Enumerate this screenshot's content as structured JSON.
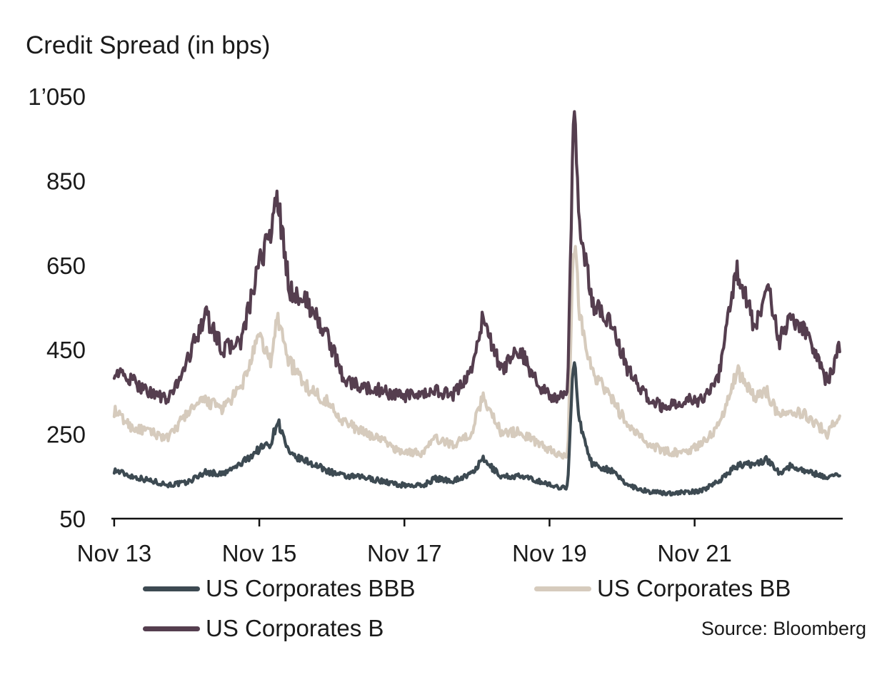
{
  "chart_data": {
    "type": "line",
    "ylabel": "Credit Spread (in bps)",
    "ylim": [
      50,
      1050
    ],
    "yticks": [
      50,
      250,
      450,
      650,
      850,
      1050
    ],
    "ytick_labels": [
      "50",
      "250",
      "450",
      "650",
      "850",
      "1’050"
    ],
    "xlim": [
      "2013-11-01",
      "2023-11-30"
    ],
    "xticks": [
      "2013-11",
      "2015-11",
      "2017-11",
      "2019-11",
      "2021-11"
    ],
    "xtick_labels": [
      "Nov 13",
      "Nov 15",
      "Nov 17",
      "Nov 19",
      "Nov 21"
    ],
    "grid": false,
    "legend_position": "bottom",
    "source": "Source: Bloomberg",
    "series": [
      {
        "name": "US Corporates BBB",
        "color": "#3d4a52",
        "points": [
          [
            "2013-11",
            165
          ],
          [
            "2014-02",
            150
          ],
          [
            "2014-05",
            140
          ],
          [
            "2014-08",
            130
          ],
          [
            "2014-11",
            135
          ],
          [
            "2015-02",
            160
          ],
          [
            "2015-05",
            155
          ],
          [
            "2015-08",
            180
          ],
          [
            "2015-11",
            215
          ],
          [
            "2016-01",
            230
          ],
          [
            "2016-02",
            285
          ],
          [
            "2016-04",
            200
          ],
          [
            "2016-07",
            185
          ],
          [
            "2016-10",
            165
          ],
          [
            "2017-01",
            150
          ],
          [
            "2017-04",
            148
          ],
          [
            "2017-07",
            140
          ],
          [
            "2017-10",
            130
          ],
          [
            "2018-02",
            128
          ],
          [
            "2018-04",
            145
          ],
          [
            "2018-07",
            140
          ],
          [
            "2018-10",
            155
          ],
          [
            "2018-12",
            190
          ],
          [
            "2019-03",
            150
          ],
          [
            "2019-06",
            150
          ],
          [
            "2019-09",
            140
          ],
          [
            "2019-12",
            125
          ],
          [
            "2020-02",
            125
          ],
          [
            "2020-03",
            440
          ],
          [
            "2020-04",
            275
          ],
          [
            "2020-06",
            180
          ],
          [
            "2020-09",
            165
          ],
          [
            "2020-12",
            130
          ],
          [
            "2021-03",
            115
          ],
          [
            "2021-06",
            110
          ],
          [
            "2021-09",
            112
          ],
          [
            "2021-12",
            115
          ],
          [
            "2022-03",
            140
          ],
          [
            "2022-06",
            175
          ],
          [
            "2022-09",
            180
          ],
          [
            "2022-11",
            190
          ],
          [
            "2023-01",
            160
          ],
          [
            "2023-03",
            175
          ],
          [
            "2023-06",
            160
          ],
          [
            "2023-09",
            148
          ],
          [
            "2023-11",
            155
          ]
        ]
      },
      {
        "name": "US Corporates BB",
        "color": "#d6cbbd",
        "points": [
          [
            "2013-11",
            305
          ],
          [
            "2014-02",
            265
          ],
          [
            "2014-05",
            255
          ],
          [
            "2014-08",
            240
          ],
          [
            "2014-11",
            300
          ],
          [
            "2015-02",
            330
          ],
          [
            "2015-05",
            310
          ],
          [
            "2015-08",
            360
          ],
          [
            "2015-11",
            480
          ],
          [
            "2016-01",
            420
          ],
          [
            "2016-02",
            530
          ],
          [
            "2016-04",
            420
          ],
          [
            "2016-07",
            360
          ],
          [
            "2016-10",
            330
          ],
          [
            "2017-01",
            280
          ],
          [
            "2017-04",
            255
          ],
          [
            "2017-07",
            240
          ],
          [
            "2017-10",
            210
          ],
          [
            "2018-02",
            205
          ],
          [
            "2018-04",
            240
          ],
          [
            "2018-07",
            225
          ],
          [
            "2018-10",
            250
          ],
          [
            "2018-12",
            340
          ],
          [
            "2019-03",
            255
          ],
          [
            "2019-06",
            255
          ],
          [
            "2019-09",
            230
          ],
          [
            "2019-12",
            205
          ],
          [
            "2020-02",
            200
          ],
          [
            "2020-03",
            720
          ],
          [
            "2020-04",
            540
          ],
          [
            "2020-06",
            400
          ],
          [
            "2020-09",
            340
          ],
          [
            "2020-12",
            270
          ],
          [
            "2021-03",
            230
          ],
          [
            "2021-06",
            210
          ],
          [
            "2021-09",
            205
          ],
          [
            "2021-12",
            225
          ],
          [
            "2022-03",
            270
          ],
          [
            "2022-06",
            400
          ],
          [
            "2022-09",
            340
          ],
          [
            "2022-11",
            350
          ],
          [
            "2023-01",
            290
          ],
          [
            "2023-03",
            310
          ],
          [
            "2023-06",
            290
          ],
          [
            "2023-09",
            250
          ],
          [
            "2023-11",
            300
          ]
        ]
      },
      {
        "name": "US Corporates B",
        "color": "#553e4f",
        "points": [
          [
            "2013-11",
            400
          ],
          [
            "2014-02",
            375
          ],
          [
            "2014-05",
            350
          ],
          [
            "2014-08",
            330
          ],
          [
            "2014-11",
            420
          ],
          [
            "2015-02",
            535
          ],
          [
            "2015-05",
            450
          ],
          [
            "2015-08",
            470
          ],
          [
            "2015-11",
            650
          ],
          [
            "2016-01",
            740
          ],
          [
            "2016-02",
            810
          ],
          [
            "2016-04",
            590
          ],
          [
            "2016-07",
            560
          ],
          [
            "2016-10",
            490
          ],
          [
            "2017-01",
            380
          ],
          [
            "2017-04",
            360
          ],
          [
            "2017-07",
            355
          ],
          [
            "2017-10",
            340
          ],
          [
            "2018-02",
            340
          ],
          [
            "2018-04",
            355
          ],
          [
            "2018-07",
            340
          ],
          [
            "2018-10",
            400
          ],
          [
            "2018-12",
            525
          ],
          [
            "2019-03",
            400
          ],
          [
            "2019-06",
            450
          ],
          [
            "2019-09",
            370
          ],
          [
            "2019-12",
            330
          ],
          [
            "2020-02",
            350
          ],
          [
            "2020-03",
            1020
          ],
          [
            "2020-04",
            750
          ],
          [
            "2020-06",
            560
          ],
          [
            "2020-09",
            520
          ],
          [
            "2020-12",
            400
          ],
          [
            "2021-03",
            340
          ],
          [
            "2021-06",
            310
          ],
          [
            "2021-09",
            330
          ],
          [
            "2021-12",
            330
          ],
          [
            "2022-03",
            390
          ],
          [
            "2022-06",
            640
          ],
          [
            "2022-09",
            500
          ],
          [
            "2022-11",
            610
          ],
          [
            "2023-01",
            470
          ],
          [
            "2023-03",
            530
          ],
          [
            "2023-06",
            480
          ],
          [
            "2023-09",
            370
          ],
          [
            "2023-11",
            455
          ]
        ]
      }
    ]
  }
}
